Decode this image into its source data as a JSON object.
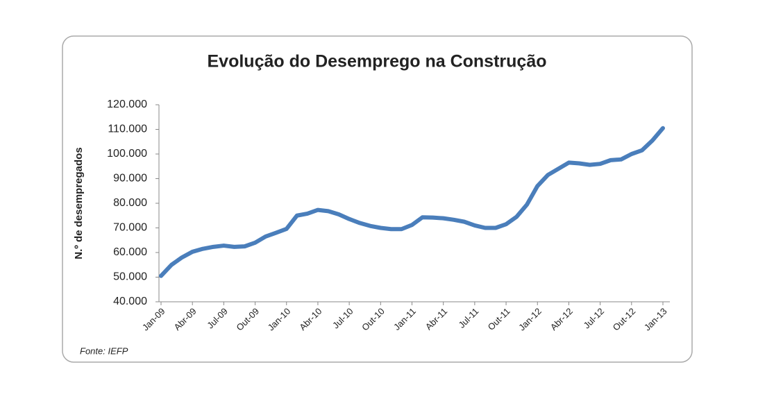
{
  "chart_data": {
    "type": "line",
    "title": "Evolução do Desemprego na Construção",
    "y_label": "N.º de desempregados",
    "source": "Fonte: IEFP",
    "categories": [
      "Jan-09",
      null,
      null,
      "Abr-09",
      null,
      null,
      "Jul-09",
      null,
      null,
      "Out-09",
      null,
      null,
      "Jan-10",
      null,
      null,
      "Abr-10",
      null,
      null,
      "Jul-10",
      null,
      null,
      "Out-10",
      null,
      null,
      "Jan-11",
      null,
      null,
      "Abr-11",
      null,
      null,
      "Jul-11",
      null,
      null,
      "Out-11",
      null,
      null,
      "Jan-12",
      null,
      null,
      "Abr-12",
      null,
      null,
      "Jul-12",
      null,
      null,
      "Out-12",
      null,
      null,
      "Jan-13"
    ],
    "series": [
      {
        "name": "Desempregados",
        "color": "#4a7ebb",
        "values": [
          50500,
          55000,
          58000,
          60300,
          61500,
          62300,
          62800,
          62300,
          62500,
          64000,
          66500,
          68000,
          69600,
          75000,
          75800,
          77300,
          76800,
          75500,
          73600,
          72000,
          70800,
          70000,
          69500,
          69500,
          71200,
          74300,
          74200,
          73900,
          73300,
          72500,
          71000,
          70000,
          70000,
          71500,
          74500,
          79500,
          87000,
          91500,
          94000,
          96500,
          96200,
          95600,
          96000,
          97500,
          97800,
          100000,
          101500,
          105500,
          110500
        ]
      }
    ],
    "ylim": [
      40000,
      120000
    ],
    "yticks": [
      {
        "value": 40000,
        "label": "40.000"
      },
      {
        "value": 50000,
        "label": "50.000"
      },
      {
        "value": 60000,
        "label": "60.000"
      },
      {
        "value": 70000,
        "label": "70.000"
      },
      {
        "value": 80000,
        "label": "80.000"
      },
      {
        "value": 90000,
        "label": "90.000"
      },
      {
        "value": 100000,
        "label": "100.000"
      },
      {
        "value": 110000,
        "label": "110.000"
      },
      {
        "value": 120000,
        "label": "120.000"
      }
    ]
  }
}
